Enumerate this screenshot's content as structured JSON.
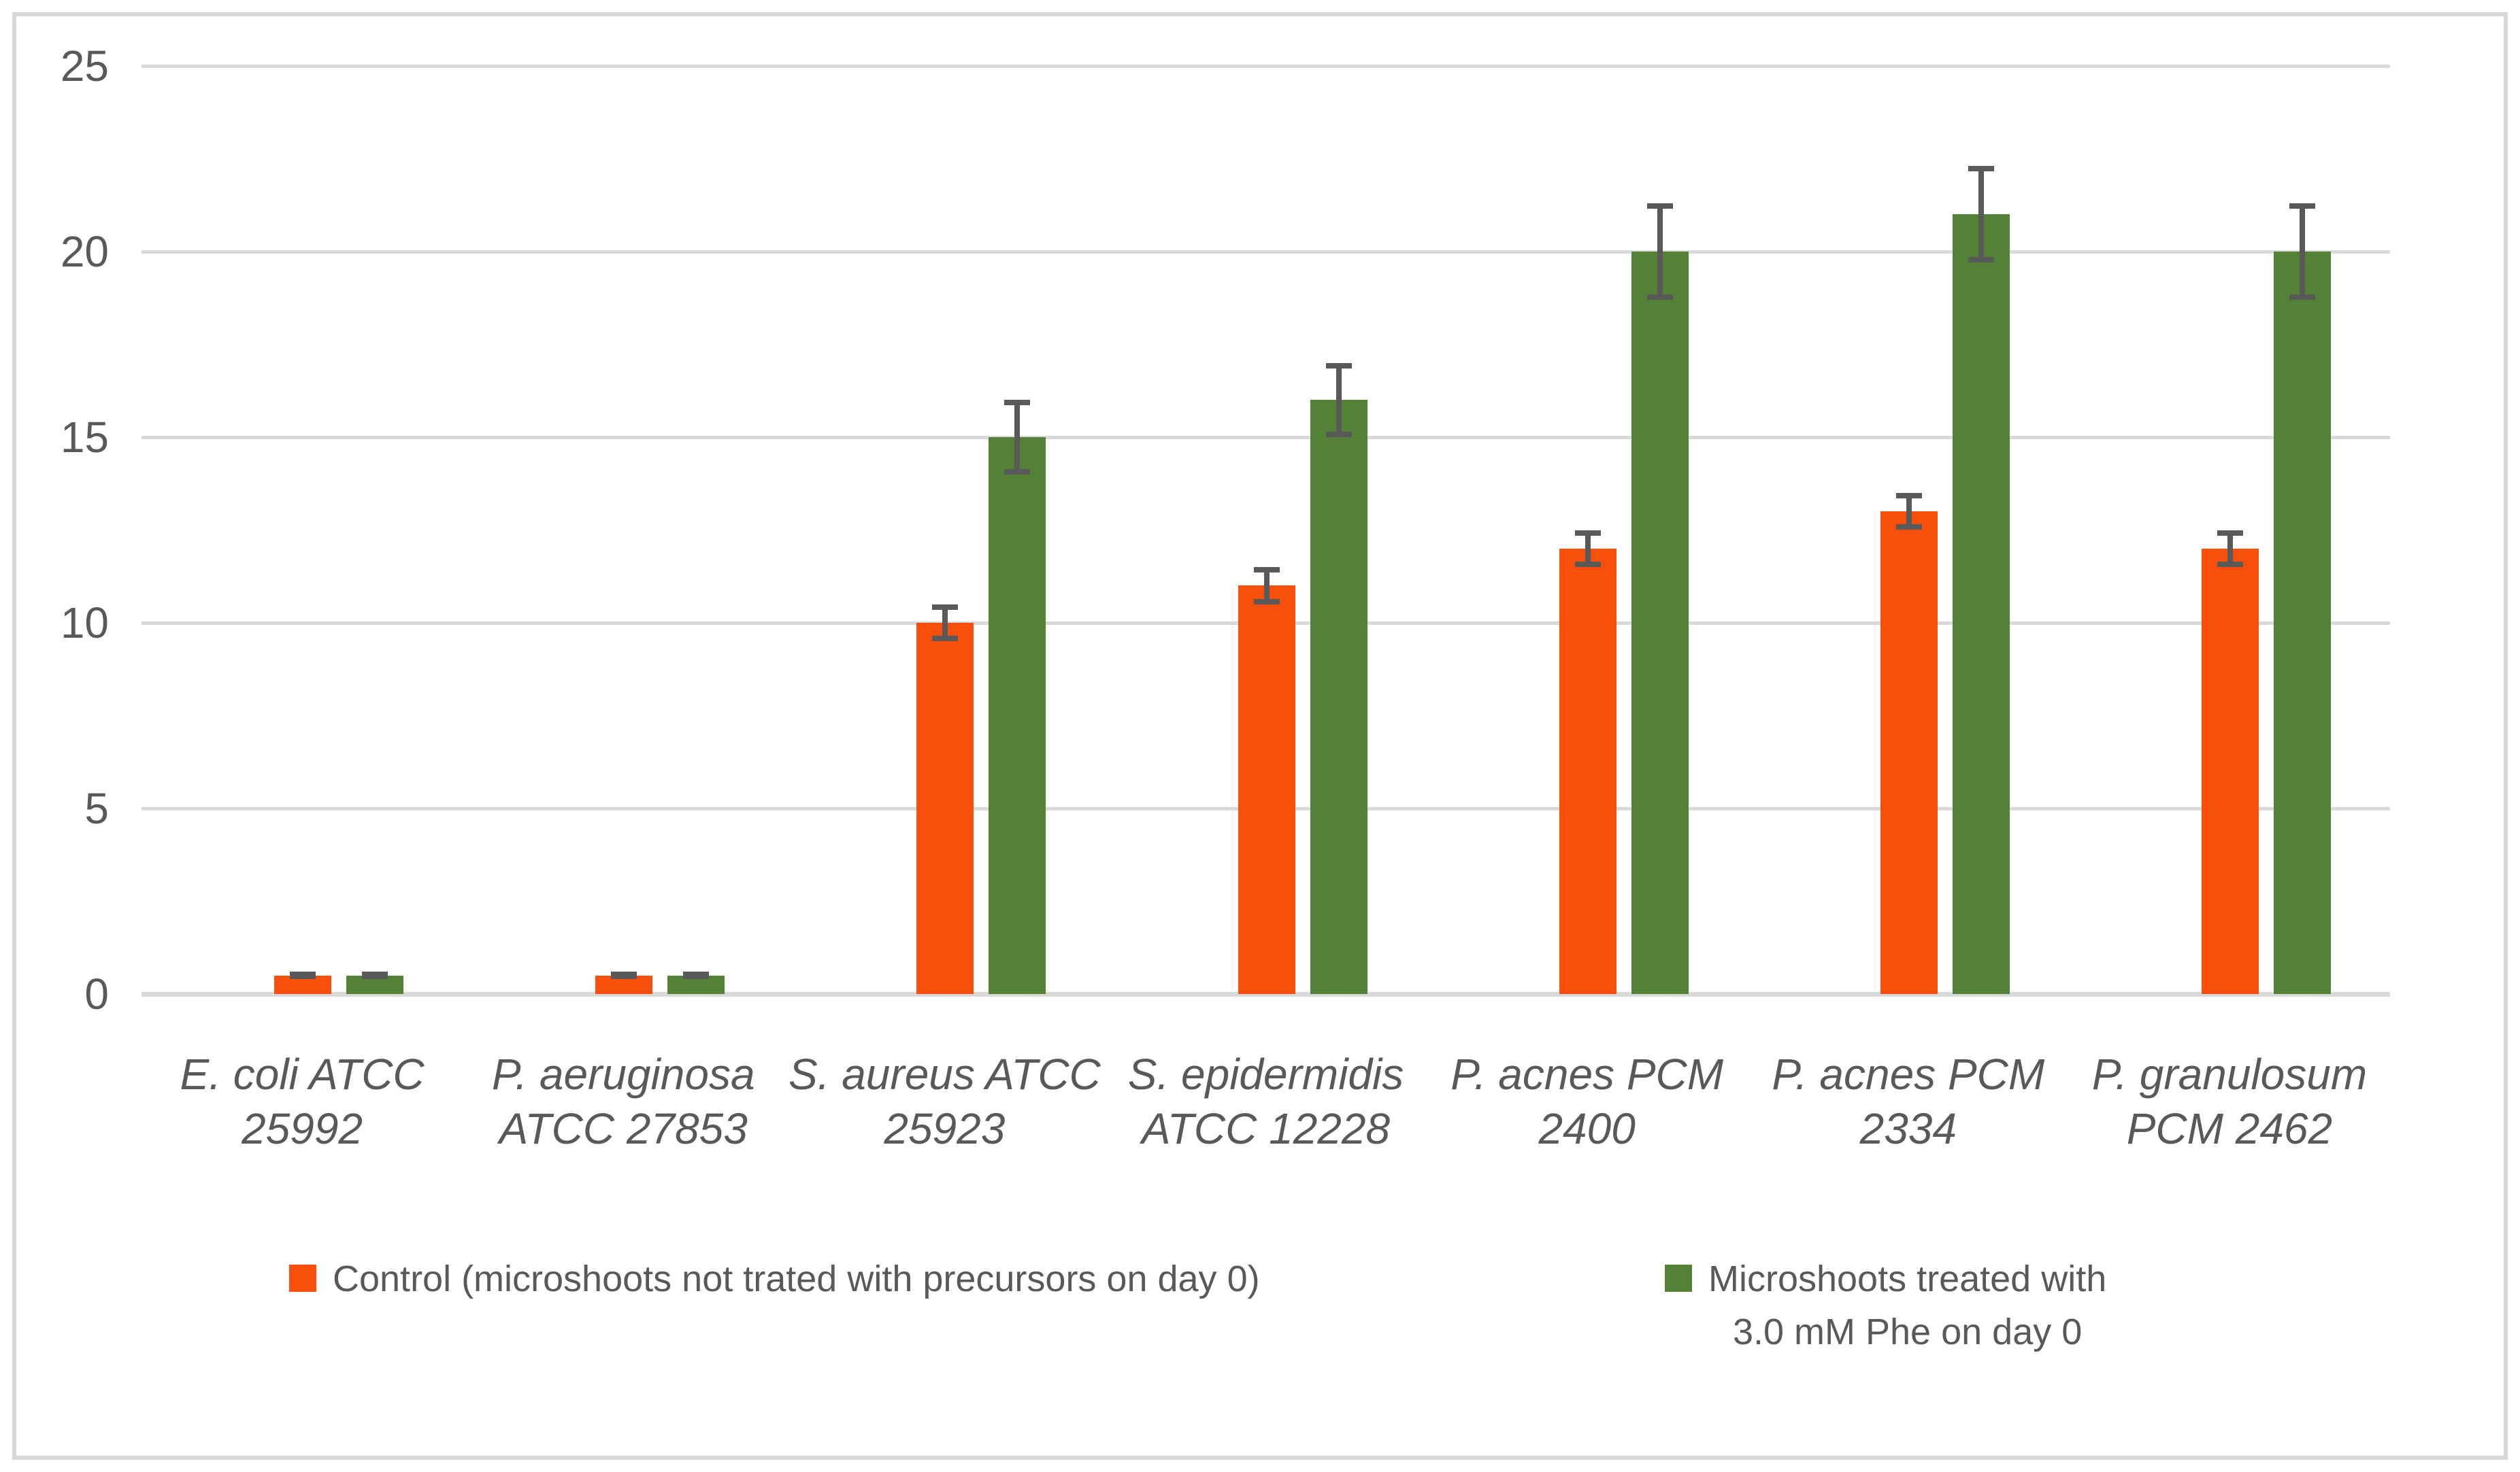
{
  "chart_data": {
    "type": "bar",
    "title": "",
    "xlabel": "",
    "ylabel": "",
    "ylim": [
      0,
      25
    ],
    "yticks": [
      0,
      5,
      10,
      15,
      20,
      25
    ],
    "grid": true,
    "legend_position": "bottom",
    "categories": [
      {
        "line1": "E. coli ATCC",
        "line2": "25992"
      },
      {
        "line1": "P. aeruginosa",
        "line2": "ATCC 27853"
      },
      {
        "line1": "S. aureus ATCC",
        "line2": "25923"
      },
      {
        "line1": "S. epidermidis",
        "line2": "ATCC 12228"
      },
      {
        "line1": "P. acnes PCM",
        "line2": "2400"
      },
      {
        "line1": "P. acnes PCM",
        "line2": "2334"
      },
      {
        "line1": "P. granulosum",
        "line2": "PCM 2462"
      }
    ],
    "series": [
      {
        "name": "Control (microshoots not trated with precursors on day 0)",
        "color": "#F94F0C",
        "values": [
          0.5,
          0.5,
          10,
          11,
          12,
          13,
          12
        ],
        "errors": [
          0.1,
          0.1,
          0.5,
          0.5,
          0.5,
          0.5,
          0.5
        ]
      },
      {
        "name": "Microshoots treated with 3.0 mM Phe on day 0",
        "color": "#538135",
        "values": [
          0.5,
          0.5,
          15,
          16,
          20,
          21,
          20
        ],
        "errors": [
          0.1,
          0.1,
          1.0,
          1.0,
          1.3,
          1.3,
          1.3
        ]
      }
    ]
  },
  "legend": {
    "control_label": "Control (microshoots not trated with precursors on day 0)",
    "treated_line1": "Microshoots treated with",
    "treated_line2": "3.0 mM Phe on day 0"
  },
  "colors": {
    "control": "#F94F0C",
    "treated": "#538135",
    "error_bar": "#595959",
    "gridline": "#D9D9D9",
    "text": "#595959"
  }
}
